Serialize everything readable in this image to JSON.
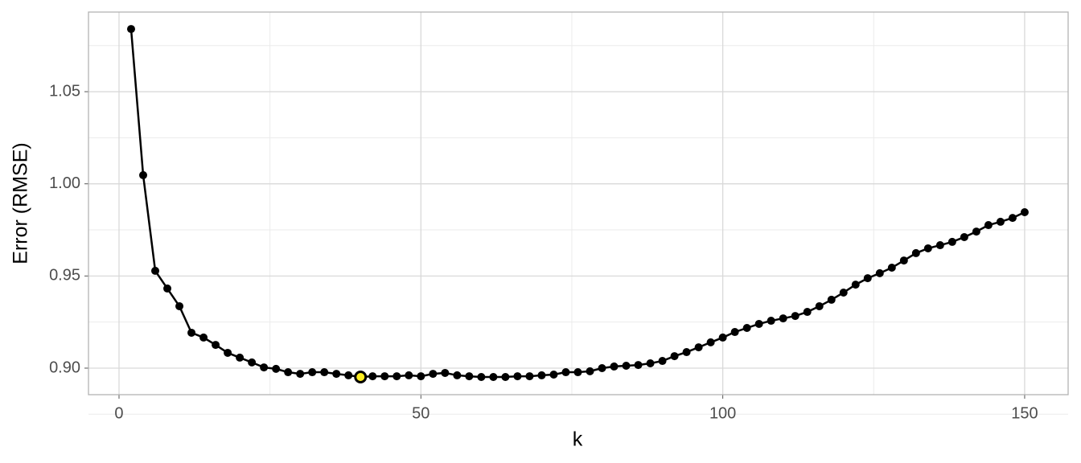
{
  "chart_data": {
    "type": "line",
    "x_label": "k",
    "y_label": "Error (RMSE)",
    "x": [
      2,
      4,
      6,
      8,
      10,
      12,
      14,
      16,
      18,
      20,
      22,
      24,
      26,
      28,
      30,
      32,
      34,
      36,
      38,
      40,
      42,
      44,
      46,
      48,
      50,
      52,
      54,
      56,
      58,
      60,
      62,
      64,
      66,
      68,
      70,
      72,
      74,
      76,
      78,
      80,
      82,
      84,
      86,
      88,
      90,
      92,
      94,
      96,
      98,
      100,
      102,
      104,
      106,
      108,
      110,
      112,
      114,
      116,
      118,
      120,
      122,
      124,
      126,
      128,
      130,
      132,
      134,
      136,
      138,
      140,
      142,
      144,
      146,
      148,
      150
    ],
    "series": [
      {
        "color": "#000000",
        "values": [
          1.084,
          1.0047,
          0.9528,
          0.9432,
          0.9336,
          0.9192,
          0.9166,
          0.9126,
          0.9083,
          0.9057,
          0.9031,
          0.9004,
          0.8996,
          0.8978,
          0.8969,
          0.8978,
          0.8978,
          0.8969,
          0.8961,
          0.8952,
          0.8956,
          0.8956,
          0.8956,
          0.8961,
          0.8956,
          0.8969,
          0.8974,
          0.8961,
          0.8956,
          0.8952,
          0.8952,
          0.8952,
          0.8956,
          0.8956,
          0.8961,
          0.8965,
          0.8978,
          0.8978,
          0.8983,
          0.9,
          0.9009,
          0.9013,
          0.9017,
          0.9026,
          0.9039,
          0.9065,
          0.9087,
          0.9113,
          0.914,
          0.9166,
          0.9196,
          0.9218,
          0.924,
          0.9257,
          0.927,
          0.9283,
          0.9305,
          0.9336,
          0.9371,
          0.941,
          0.9453,
          0.9488,
          0.9515,
          0.9545,
          0.9584,
          0.9624,
          0.965,
          0.9667,
          0.9685,
          0.9711,
          0.9741,
          0.9776,
          0.9794,
          0.9815,
          0.9846
        ]
      }
    ],
    "highlight_index": 19,
    "highlight_color": "#ffee22",
    "xlim": [
      -5.06,
      157.2
    ],
    "ylim": [
      0.8856,
      1.0932
    ],
    "xticks": [
      0,
      50,
      100,
      150
    ],
    "yticks": [
      {
        "value": 0.9,
        "label": "0.90"
      },
      0.95,
      {
        "value": 1.0,
        "label": "1.00"
      },
      1.05
    ],
    "x_minor_ticks": [
      25,
      75,
      125
    ],
    "y_minor_ticks": [
      0.875,
      0.925,
      0.975,
      1.025,
      1.075
    ],
    "grid": true
  }
}
